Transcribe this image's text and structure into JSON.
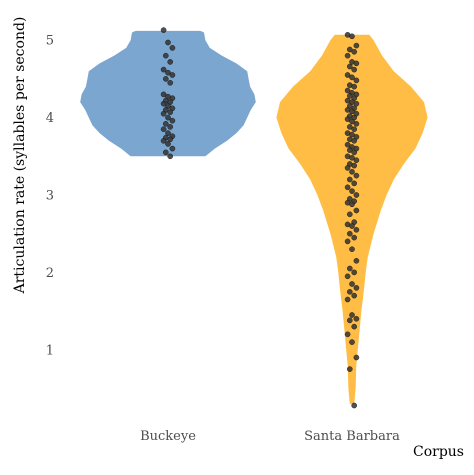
{
  "chart_data": {
    "type": "violin",
    "xlabel": "Corpus",
    "ylabel": "Articulation rate (syllables per second)",
    "ylim": [
      0,
      5.2
    ],
    "yticks": [
      1,
      2,
      3,
      4,
      5
    ],
    "categories": [
      "Buckeye",
      "Santa Barbara"
    ],
    "grid": false,
    "legend": "none",
    "colors": {
      "Buckeye": "#7aa6cf",
      "Santa Barbara": "#ffbd45",
      "points": "#333333"
    },
    "series": [
      {
        "name": "Buckeye",
        "density": [
          [
            3.5,
            0.52
          ],
          [
            3.6,
            0.65
          ],
          [
            3.7,
            0.82
          ],
          [
            3.8,
            0.95
          ],
          [
            3.9,
            1.05
          ],
          [
            4.0,
            1.1
          ],
          [
            4.1,
            1.15
          ],
          [
            4.2,
            1.22
          ],
          [
            4.3,
            1.2
          ],
          [
            4.4,
            1.14
          ],
          [
            4.5,
            1.12
          ],
          [
            4.6,
            1.1
          ],
          [
            4.7,
            0.95
          ],
          [
            4.8,
            0.75
          ],
          [
            4.9,
            0.58
          ],
          [
            5.0,
            0.52
          ],
          [
            5.1,
            0.5
          ],
          [
            5.12,
            0.45
          ]
        ],
        "points": [
          5.13,
          4.97,
          4.9,
          4.8,
          4.72,
          4.62,
          4.58,
          4.55,
          4.5,
          4.45,
          4.3,
          4.27,
          4.25,
          4.22,
          4.2,
          4.18,
          4.15,
          4.12,
          4.1,
          4.07,
          4.05,
          4.0,
          3.96,
          3.92,
          3.88,
          3.85,
          3.8,
          3.76,
          3.74,
          3.72,
          3.7,
          3.66,
          3.6,
          3.55,
          3.5
        ]
      },
      {
        "name": "Santa Barbara",
        "density": [
          [
            0.3,
            0.03
          ],
          [
            0.5,
            0.05
          ],
          [
            0.8,
            0.06
          ],
          [
            1.0,
            0.08
          ],
          [
            1.2,
            0.1
          ],
          [
            1.5,
            0.13
          ],
          [
            1.8,
            0.17
          ],
          [
            2.0,
            0.19
          ],
          [
            2.2,
            0.22
          ],
          [
            2.5,
            0.3
          ],
          [
            2.8,
            0.4
          ],
          [
            3.0,
            0.48
          ],
          [
            3.2,
            0.58
          ],
          [
            3.4,
            0.72
          ],
          [
            3.6,
            0.88
          ],
          [
            3.8,
            0.98
          ],
          [
            4.0,
            1.05
          ],
          [
            4.2,
            1.0
          ],
          [
            4.4,
            0.82
          ],
          [
            4.6,
            0.58
          ],
          [
            4.8,
            0.42
          ],
          [
            5.0,
            0.3
          ],
          [
            5.07,
            0.24
          ]
        ],
        "points": [
          5.07,
          5.05,
          4.93,
          4.88,
          4.85,
          4.8,
          4.72,
          4.7,
          4.66,
          4.62,
          4.55,
          4.52,
          4.48,
          4.42,
          4.4,
          4.35,
          4.32,
          4.3,
          4.28,
          4.25,
          4.22,
          4.2,
          4.18,
          4.15,
          4.12,
          4.1,
          4.08,
          4.05,
          4.02,
          4.0,
          3.98,
          3.95,
          3.92,
          3.88,
          3.85,
          3.8,
          3.78,
          3.75,
          3.72,
          3.7,
          3.65,
          3.62,
          3.6,
          3.58,
          3.55,
          3.5,
          3.48,
          3.45,
          3.4,
          3.38,
          3.35,
          3.3,
          3.25,
          3.2,
          3.15,
          3.1,
          3.05,
          3.0,
          2.95,
          2.92,
          2.9,
          2.88,
          2.8,
          2.75,
          2.65,
          2.62,
          2.6,
          2.55,
          2.5,
          2.45,
          2.4,
          2.3,
          2.15,
          2.05,
          2.0,
          1.95,
          1.85,
          1.8,
          1.75,
          1.7,
          1.65,
          1.45,
          1.4,
          1.38,
          1.3,
          1.2,
          1.1,
          0.9,
          0.75,
          0.28
        ]
      }
    ]
  }
}
